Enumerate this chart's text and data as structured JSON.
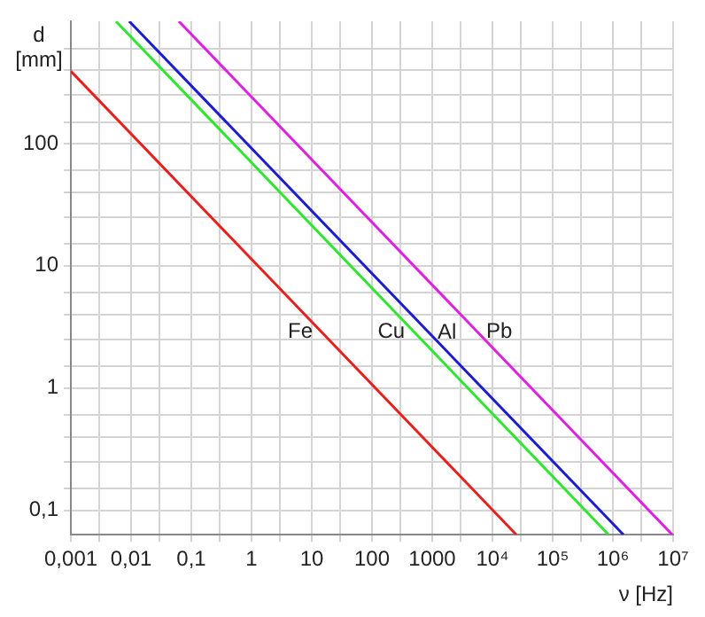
{
  "chart_data": {
    "type": "line",
    "xlabel": "ν [Hz]",
    "ylabel": "d [mm]",
    "log": "xy",
    "grid": true,
    "marker": "none",
    "line_style": "solid",
    "xlim": [
      0.001,
      10000000
    ],
    "ylim": [
      0.063,
      1000
    ],
    "xticks": [
      {
        "value": 0.001,
        "label": "0,001"
      },
      {
        "value": 0.003,
        "label": null
      },
      {
        "value": 0.01,
        "label": "0,01"
      },
      {
        "value": 0.03,
        "label": null
      },
      {
        "value": 0.1,
        "label": "0,1"
      },
      {
        "value": 0.3,
        "label": null
      },
      1,
      {
        "value": 3,
        "label": null
      },
      10,
      {
        "value": 30,
        "label": null
      },
      100,
      {
        "value": 300,
        "label": null
      },
      1000,
      {
        "value": 3000,
        "label": null
      },
      {
        "value": 10000,
        "label": "10⁴"
      },
      {
        "value": 30000,
        "label": null
      },
      {
        "value": 100000,
        "label": "10⁵"
      },
      {
        "value": 300000,
        "label": null
      },
      {
        "value": 1000000,
        "label": "10⁶"
      },
      {
        "value": 3000000,
        "label": null
      },
      {
        "value": 10000000,
        "label": "10⁷"
      }
    ],
    "yticks": [
      {
        "value": 0.1,
        "label": "0,1"
      },
      {
        "value": 0.15,
        "label": null
      },
      {
        "value": 0.25,
        "label": null
      },
      {
        "value": 0.4,
        "label": null
      },
      {
        "value": 0.6,
        "label": null
      },
      1,
      {
        "value": 1.5,
        "label": null
      },
      {
        "value": 2.5,
        "label": null
      },
      {
        "value": 4,
        "label": null
      },
      {
        "value": 6,
        "label": null
      },
      10,
      {
        "value": 15,
        "label": null
      },
      {
        "value": 25,
        "label": null
      },
      {
        "value": 40,
        "label": null
      },
      {
        "value": 60,
        "label": null
      },
      100,
      {
        "value": 150,
        "label": null
      },
      {
        "value": 250,
        "label": null
      },
      {
        "value": 400,
        "label": null
      },
      {
        "value": 600,
        "label": null
      }
    ],
    "series": [
      {
        "name": "Fe",
        "color": "#e8201c",
        "x": [
          0.001,
          25000
        ],
        "values": [
          390,
          0.063
        ]
      },
      {
        "name": "Cu",
        "color": "#2ee62e",
        "x": [
          0.0056,
          850000
        ],
        "values": [
          1000,
          0.063
        ]
      },
      {
        "name": "Al",
        "color": "#1c1cd0",
        "x": [
          0.0093,
          1500000
        ],
        "values": [
          1000,
          0.063
        ]
      },
      {
        "name": "Pb",
        "color": "#e020e0",
        "x": [
          0.062,
          9700000
        ],
        "values": [
          1000,
          0.063
        ]
      }
    ]
  }
}
